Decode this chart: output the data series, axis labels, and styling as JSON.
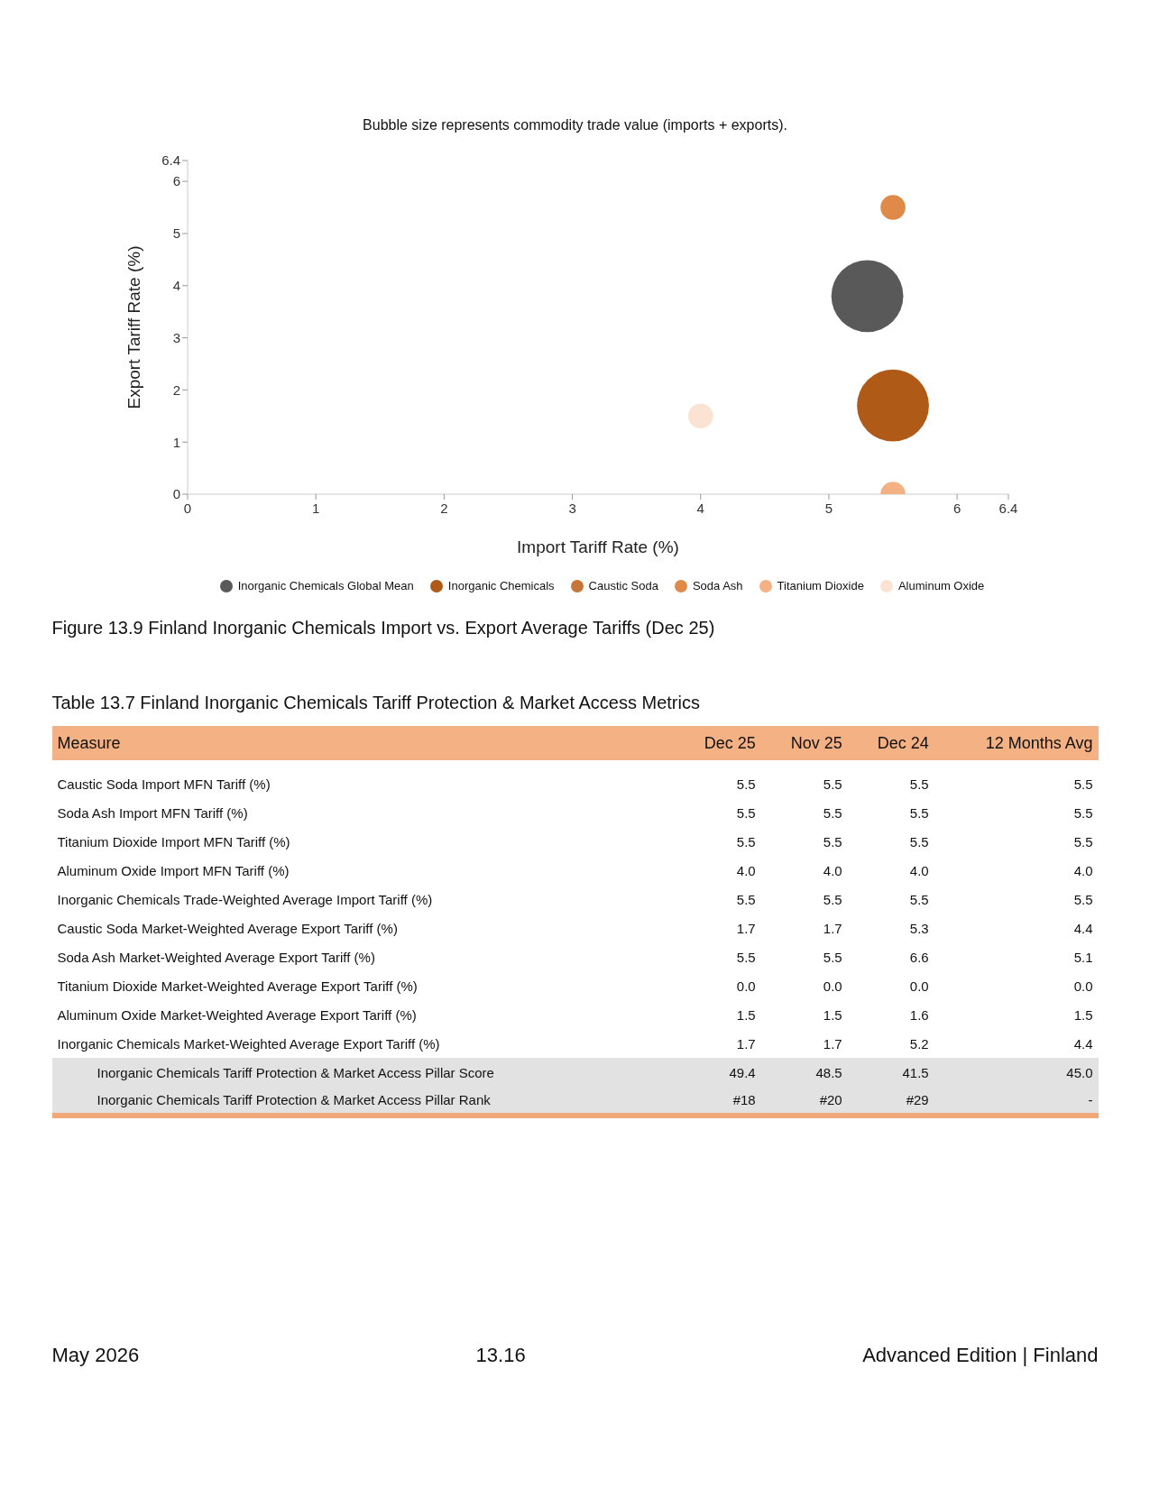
{
  "chart_data": [
    {
      "type": "bubble",
      "title": "Figure 13.9  Finland Inorganic Chemicals Import vs. Export Average Tariffs (Dec 25)",
      "subtitle": "Bubble size represents commodity trade value (imports + exports).",
      "xlabel": "Import Tariff Rate (%)",
      "ylabel": "Export Tariff Rate (%)",
      "xlim": [
        0,
        6.4
      ],
      "xticks": [
        0,
        1,
        2,
        3,
        4,
        5,
        6,
        6.4
      ],
      "ylim": [
        0,
        6.4
      ],
      "yticks": [
        0,
        1,
        2,
        3,
        4,
        5,
        6,
        6.4
      ],
      "legend": "bottom",
      "series": [
        {
          "name": "Inorganic Chemicals Global Mean",
          "color": "#595959",
          "x": [
            5.3
          ],
          "values": [
            3.8
          ],
          "sizes": [
            1
          ]
        },
        {
          "name": "Inorganic Chemicals",
          "color": "#b05a17",
          "x": [
            5.5
          ],
          "values": [
            1.7
          ],
          "sizes": [
            1
          ]
        },
        {
          "name": "Caustic Soda",
          "color": "#c8753a",
          "x": [
            null
          ],
          "values": [
            null
          ],
          "sizes": [
            null
          ]
        },
        {
          "name": "Soda Ash",
          "color": "#e08a4a",
          "x": [
            5.5
          ],
          "values": [
            5.5
          ],
          "sizes": [
            0.12
          ]
        },
        {
          "name": "Titanium Dioxide",
          "color": "#f4b183",
          "x": [
            5.5
          ],
          "values": [
            0.0
          ],
          "sizes": [
            0.12
          ]
        },
        {
          "name": "Aluminum Oxide",
          "color": "#fbe3d4",
          "x": [
            4.0
          ],
          "values": [
            1.5
          ],
          "sizes": [
            0.12
          ]
        }
      ]
    },
    {
      "type": "other",
      "title": "Table 13.7  Finland Inorganic Chemicals Tariff Protection & Market Access Metrics",
      "ylabel": "Measure",
      "categories": [
        "Dec 25",
        "Nov 25",
        "Dec 24",
        "12 Months Avg"
      ],
      "y_categories": [
        "Caustic Soda Import MFN Tariff (%)",
        "Soda Ash Import MFN Tariff (%)",
        "Titanium Dioxide Import MFN Tariff (%)",
        "Aluminum Oxide Import MFN Tariff (%)",
        "Inorganic Chemicals Trade-Weighted Average Import Tariff (%)",
        "Caustic Soda Market-Weighted Average Export Tariff (%)",
        "Soda Ash Market-Weighted Average Export Tariff (%)",
        "Titanium Dioxide Market-Weighted Average Export Tariff (%)",
        "Aluminum Oxide Market-Weighted Average Export Tariff (%)",
        "Inorganic Chemicals Market-Weighted Average Export Tariff (%)",
        "Inorganic Chemicals Tariff Protection & Market Access Pillar Score",
        "Inorganic Chemicals Tariff Protection & Market Access Pillar Rank"
      ],
      "cell_labels": [
        [
          "5.5",
          "5.5",
          "5.5",
          "5.5"
        ],
        [
          "5.5",
          "5.5",
          "5.5",
          "5.5"
        ],
        [
          "5.5",
          "5.5",
          "5.5",
          "5.5"
        ],
        [
          "4.0",
          "4.0",
          "4.0",
          "4.0"
        ],
        [
          "5.5",
          "5.5",
          "5.5",
          "5.5"
        ],
        [
          "1.7",
          "1.7",
          "5.3",
          "4.4"
        ],
        [
          "5.5",
          "5.5",
          "6.6",
          "5.1"
        ],
        [
          "0.0",
          "0.0",
          "0.0",
          "0.0"
        ],
        [
          "1.5",
          "1.5",
          "1.6",
          "1.5"
        ],
        [
          "1.7",
          "1.7",
          "5.2",
          "4.4"
        ],
        [
          "49.4",
          "48.5",
          "41.5",
          "45.0"
        ],
        [
          "#18",
          "#20",
          "#29",
          "-"
        ]
      ],
      "annotations": [
        "May 2026",
        "13.16",
        "Advanced Edition | Finland"
      ]
    }
  ]
}
